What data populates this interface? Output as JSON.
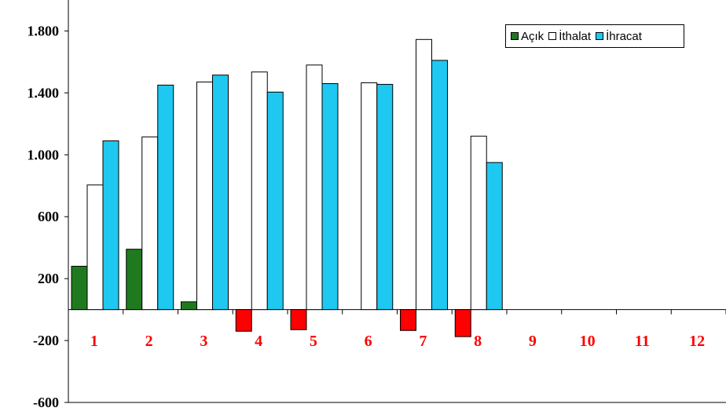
{
  "chart_data": {
    "type": "bar",
    "categories": [
      "1",
      "2",
      "3",
      "4",
      "5",
      "6",
      "7",
      "8",
      "9",
      "10",
      "11",
      "12"
    ],
    "series": [
      {
        "name": "Açık",
        "color": "#1f7a1f",
        "negative_color": "#ff0000",
        "values": [
          280,
          390,
          50,
          -140,
          -130,
          0,
          -135,
          -175,
          null,
          null,
          null,
          null
        ]
      },
      {
        "name": "İthalat",
        "color": "#ffffff",
        "values": [
          805,
          1115,
          1470,
          1535,
          1580,
          1465,
          1745,
          1120,
          null,
          null,
          null,
          null
        ]
      },
      {
        "name": "İhracat",
        "color": "#1ec8f0",
        "values": [
          1090,
          1450,
          1515,
          1405,
          1460,
          1455,
          1610,
          950,
          null,
          null,
          null,
          null
        ]
      }
    ],
    "yticks": [
      {
        "value": 1800,
        "label": "1.800"
      },
      {
        "value": 1400,
        "label": "1.400"
      },
      {
        "value": 1000,
        "label": "1.000"
      },
      {
        "value": 600,
        "label": "600"
      },
      {
        "value": 200,
        "label": "200"
      },
      {
        "value": -200,
        "label": "-200"
      },
      {
        "value": -600,
        "label": "-600"
      }
    ],
    "ylim": [
      -600,
      2000
    ],
    "grid": false,
    "legend_position": "top-right",
    "title": "",
    "xlabel": "",
    "ylabel": ""
  }
}
